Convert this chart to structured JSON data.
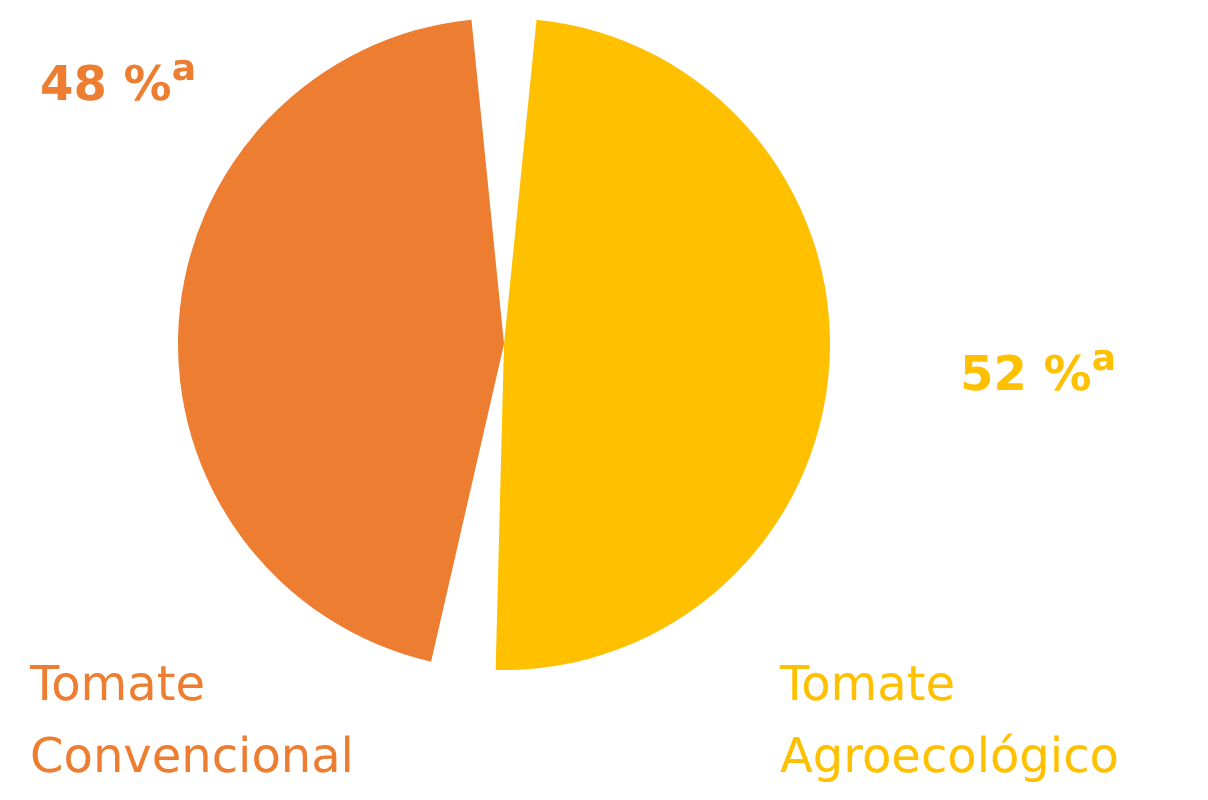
{
  "chart_data": {
    "type": "pie",
    "categories": [
      "Tomate Convencional",
      "Tomate Agroecológico"
    ],
    "values": [
      48,
      52
    ],
    "colors": [
      "#ed7d31",
      "#ffc000"
    ],
    "value_labels": [
      "48 %$^{a}$",
      "52 %$^{a}$"
    ]
  }
}
